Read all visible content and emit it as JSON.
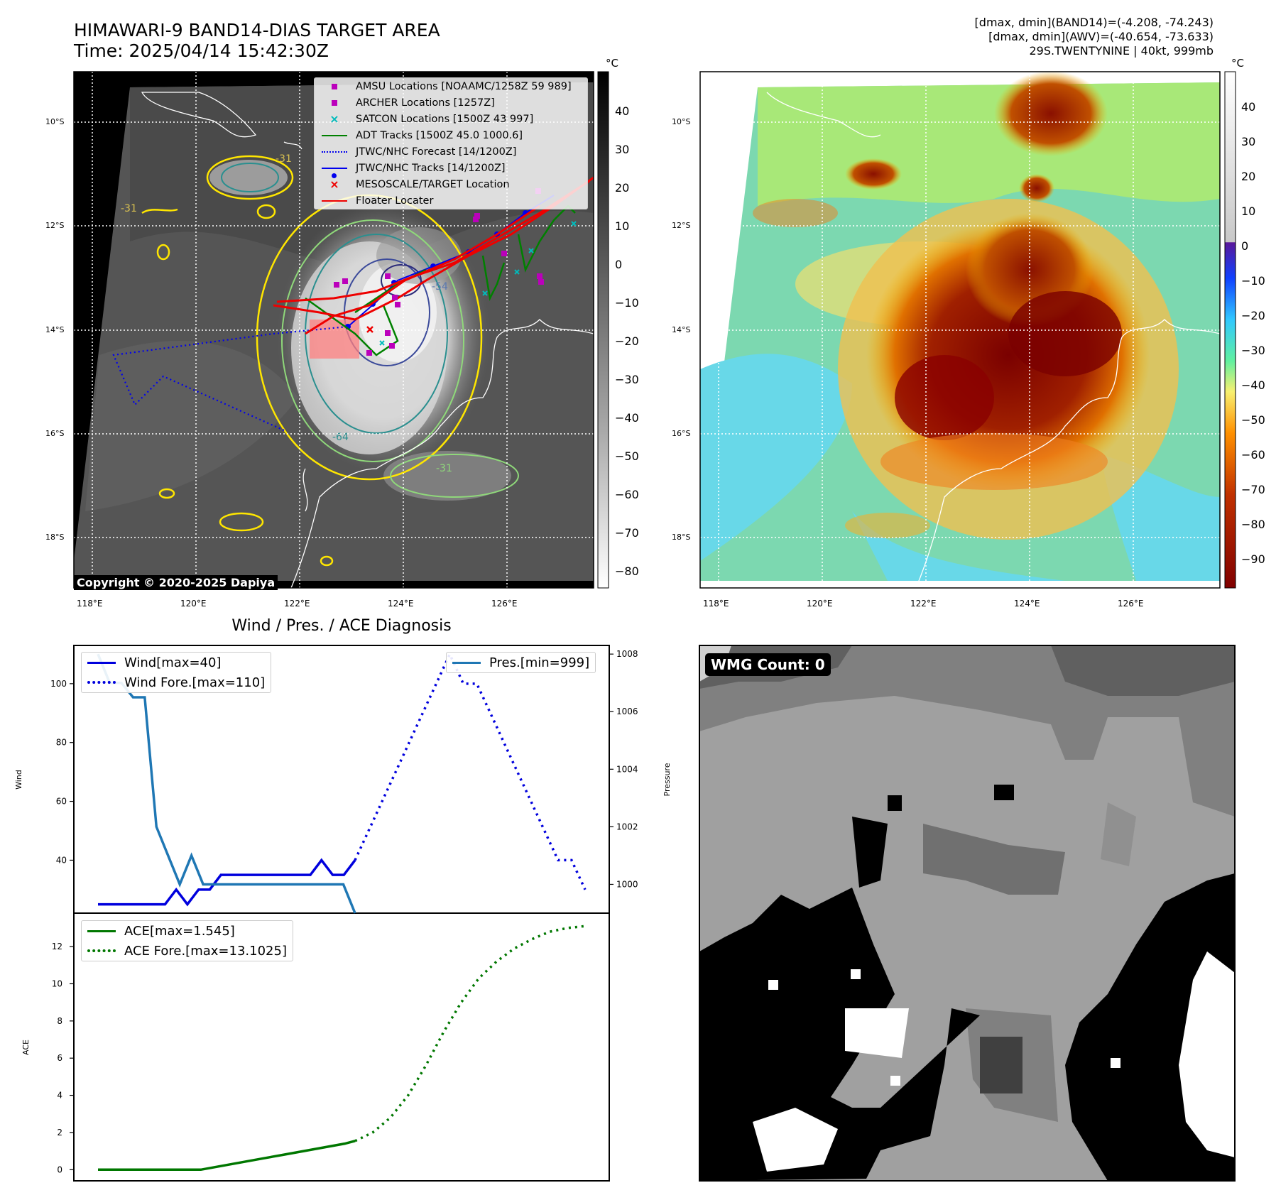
{
  "header": {
    "title_line1": "HIMAWARI-9 BAND14-DIAS TARGET AREA",
    "title_line2": "Time: 2025/04/14 15:42:30Z",
    "info_line1": "[dmax, dmin](BAND14)=(-4.208, -74.243)",
    "info_line2": "[dmax, dmin](AWV)=(-40.654, -73.633)",
    "info_line3": "29S.TWENTYNINE | 40kt, 999mb"
  },
  "map": {
    "lat_ticks": [
      "10°S",
      "12°S",
      "14°S",
      "16°S",
      "18°S"
    ],
    "lon_ticks": [
      "118°E",
      "120°E",
      "122°E",
      "124°E",
      "126°E"
    ],
    "unit": "°C",
    "copyright": "Copyright © 2020-2025 Dapiya",
    "contour_labels": [
      "-31",
      "-31",
      "-54",
      "-64",
      "-31"
    ],
    "legend": [
      {
        "label": "AMSU Locations [NOAAMC/1258Z 59 989]",
        "color": "#bb00bb",
        "marker": "square"
      },
      {
        "label": "ARCHER Locations [1257Z]",
        "color": "#bb00bb",
        "marker": "square"
      },
      {
        "label": "SATCON Locations [1500Z 43 997]",
        "color": "#00bbbb",
        "marker": "x"
      },
      {
        "label": "ADT Tracks [1500Z 45.0 1000.6]",
        "color": "#008000",
        "marker": "line"
      },
      {
        "label": "JTWC/NHC Forecast [14/1200Z]",
        "color": "#0000ee",
        "marker": "dotted"
      },
      {
        "label": "JTWC/NHC Tracks [14/1200Z]",
        "color": "#0000ee",
        "marker": "dotline"
      },
      {
        "label": "MESOSCALE/TARGET Location",
        "color": "#ee0000",
        "marker": "x"
      },
      {
        "label": "Floater Locater",
        "color": "#ee0000",
        "marker": "line"
      }
    ],
    "colorbar_ir": {
      "ticks": [
        "40",
        "30",
        "20",
        "10",
        "0",
        "−10",
        "−20",
        "−30",
        "−40",
        "−50",
        "−60",
        "−70",
        "−80"
      ]
    },
    "colorbar_awv": {
      "ticks": [
        "40",
        "30",
        "20",
        "10",
        "0",
        "−10",
        "−20",
        "−30",
        "−40",
        "−50",
        "−60",
        "−70",
        "−80",
        "−90"
      ]
    }
  },
  "wmg": {
    "label": "WMG Count: 0"
  },
  "chart_data": [
    {
      "type": "line",
      "title": "Wind / Pres. / ACE Diagnosis",
      "ylabel": "Wind",
      "ylabel_right": "Pressure",
      "ylim": [
        22,
        113
      ],
      "ylim_right": [
        999.0,
        1008.3
      ],
      "yticks": [
        40,
        60,
        80,
        100
      ],
      "yticks_right": [
        1000,
        1002,
        1004,
        1006,
        1008
      ],
      "series": [
        {
          "name": "Wind[max=40]",
          "axis": "left",
          "color": "#0000dd",
          "style": "solid",
          "values": [
            25,
            25,
            25,
            25,
            25,
            25,
            25,
            30,
            25,
            30,
            30,
            35,
            35,
            35,
            35,
            35,
            35,
            35,
            35,
            35,
            40,
            35,
            35,
            40
          ]
        },
        {
          "name": "Wind Fore.[max=110]",
          "axis": "left",
          "color": "#0000dd",
          "style": "dotted",
          "values": [
            40,
            50,
            60,
            70,
            80,
            90,
            100,
            110,
            100,
            100,
            90,
            80,
            70,
            60,
            50,
            40,
            40,
            30
          ]
        },
        {
          "name": "Pres.[min=999]",
          "axis": "right",
          "color": "#1f77b4",
          "style": "solid",
          "values": [
            1008.0,
            1007.0,
            1007.0,
            1006.5,
            1006.5,
            1002.0,
            1001.0,
            1000.0,
            1001.0,
            1000.0,
            1000.0,
            1000.0,
            1000.0,
            1000.0,
            1000.0,
            1000.0,
            1000.0,
            1000.0,
            1000.0,
            1000.0,
            1000.0,
            1000.0,
            999.0
          ]
        }
      ]
    },
    {
      "type": "line",
      "ylabel": "ACE",
      "ylim": [
        -0.6,
        13.8
      ],
      "yticks": [
        0,
        2,
        4,
        6,
        8,
        10,
        12
      ],
      "series": [
        {
          "name": "ACE[max=1.545]",
          "color": "#007700",
          "style": "solid",
          "values": [
            0,
            0,
            0,
            0,
            0,
            0,
            0,
            0,
            0,
            0,
            0,
            0.1,
            0.2,
            0.3,
            0.4,
            0.5,
            0.6,
            0.7,
            0.8,
            0.9,
            1.0,
            1.1,
            1.2,
            1.3,
            1.4,
            1.545
          ]
        },
        {
          "name": "ACE Fore.[max=13.1025]",
          "color": "#007700",
          "style": "dotted",
          "values": [
            1.545,
            2.0,
            2.8,
            4.0,
            5.6,
            7.4,
            9.0,
            10.3,
            11.2,
            11.9,
            12.4,
            12.8,
            13.0,
            13.1025
          ]
        }
      ]
    }
  ]
}
